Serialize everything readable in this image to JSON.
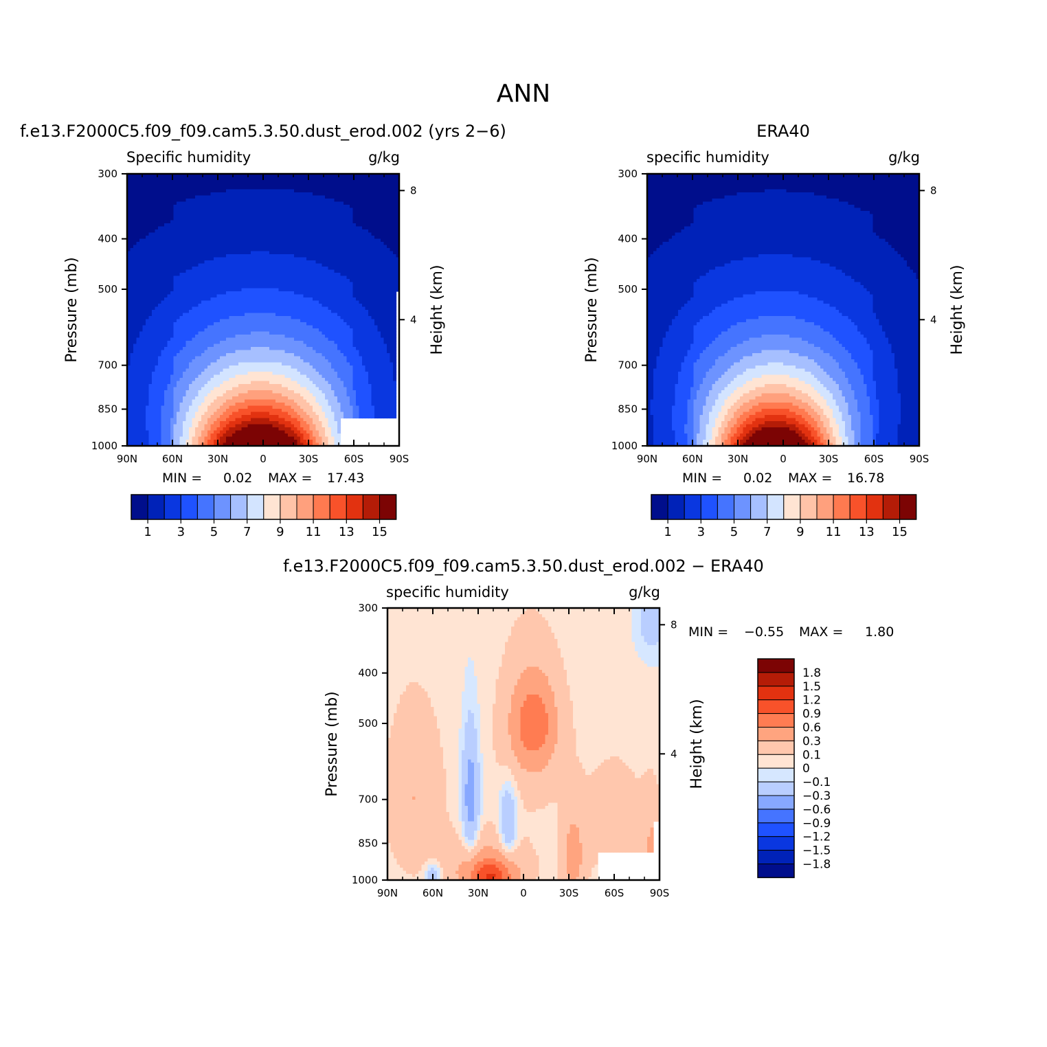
{
  "page": {
    "title": "ANN"
  },
  "palette": {
    "absolute": [
      "#000e8c",
      "#0022b8",
      "#0a37e0",
      "#1f52ff",
      "#4574ff",
      "#6d93ff",
      "#a6bfff",
      "#d3e4ff",
      "#ffe4d3",
      "#ffc3a8",
      "#ffa07d",
      "#ff7a50",
      "#f8522a",
      "#e23210",
      "#b41c07",
      "#7c0404"
    ],
    "difference": [
      "#000e8c",
      "#0022b8",
      "#0a37e0",
      "#1f52ff",
      "#4574ff",
      "#87a8ff",
      "#b9ceff",
      "#d6e7ff",
      "#ffe4d3",
      "#ffc7ad",
      "#ffa47f",
      "#ff7c52",
      "#f8522a",
      "#e23210",
      "#b41c07",
      "#7c0404"
    ]
  },
  "chart_data": [
    {
      "id": "model",
      "type": "contour",
      "title": "f.e13.F2000C5.f09_f09.cam5.3.50.dust_erod.002 (yrs 2−6)",
      "left_label": "Specific humidity",
      "right_label": "g/kg",
      "xlabel": "",
      "ylabel": "Pressure (mb)",
      "y2label": "Height (km)",
      "xticks": [
        "90N",
        "60N",
        "30N",
        "0",
        "30S",
        "60S",
        "90S"
      ],
      "xrange": [
        90,
        -90
      ],
      "yticks": [
        300,
        400,
        500,
        700,
        850,
        1000
      ],
      "yrange": [
        300,
        1000
      ],
      "y2ticks": [
        8,
        4
      ],
      "min_label": "MIN =",
      "min_value": "0.02",
      "max_label": "MAX =",
      "max_value": "17.43",
      "colorbar": {
        "orientation": "horizontal",
        "labels": [
          "1",
          "3",
          "5",
          "7",
          "9",
          "11",
          "13",
          "15"
        ]
      },
      "fields": {
        "peak": 17.4,
        "center_lat": 2,
        "width": 33,
        "top_pressure": 355,
        "missing_region": "below-ground near 60S-90S"
      }
    },
    {
      "id": "obs",
      "type": "contour",
      "title": "ERA40",
      "left_label": "specific humidity",
      "right_label": "g/kg",
      "xlabel": "",
      "ylabel": "Pressure (mb)",
      "y2label": "Height (km)",
      "xticks": [
        "90N",
        "60N",
        "30N",
        "0",
        "30S",
        "60S",
        "90S"
      ],
      "xrange": [
        90,
        -90
      ],
      "yticks": [
        300,
        400,
        500,
        700,
        850,
        1000
      ],
      "yrange": [
        300,
        1000
      ],
      "y2ticks": [
        8,
        4
      ],
      "min_label": "MIN =",
      "min_value": "0.02",
      "max_label": "MAX =",
      "max_value": "16.78",
      "colorbar": {
        "orientation": "horizontal",
        "labels": [
          "1",
          "3",
          "5",
          "7",
          "9",
          "11",
          "13",
          "15"
        ]
      },
      "fields": {
        "peak": 16.8,
        "center_lat": 5,
        "width": 30,
        "top_pressure": 370
      }
    },
    {
      "id": "diff",
      "type": "contour",
      "title": "f.e13.F2000C5.f09_f09.cam5.3.50.dust_erod.002 − ERA40",
      "left_label": "specific humidity",
      "right_label": "g/kg",
      "xlabel": "",
      "ylabel": "Pressure (mb)",
      "y2label": "Height (km)",
      "xticks": [
        "90N",
        "60N",
        "30N",
        "0",
        "30S",
        "60S",
        "90S"
      ],
      "xrange": [
        90,
        -90
      ],
      "yticks": [
        300,
        400,
        500,
        700,
        850,
        1000
      ],
      "yrange": [
        300,
        1000
      ],
      "y2ticks": [
        8,
        4
      ],
      "min_label": "MIN =",
      "min_value": "−0.55",
      "max_label": "MAX =",
      "max_value": "1.80",
      "colorbar": {
        "orientation": "vertical",
        "labels": [
          "1.8",
          "1.5",
          "1.2",
          "0.9",
          "0.6",
          "0.3",
          "0.1",
          "0",
          "−0.1",
          "−0.3",
          "−0.6",
          "−0.9",
          "−1.2",
          "−1.5",
          "−1.8"
        ]
      },
      "fields": {
        "range": [
          -0.55,
          1.8
        ],
        "missing_region": "below-ground near 60S-90S"
      }
    }
  ]
}
